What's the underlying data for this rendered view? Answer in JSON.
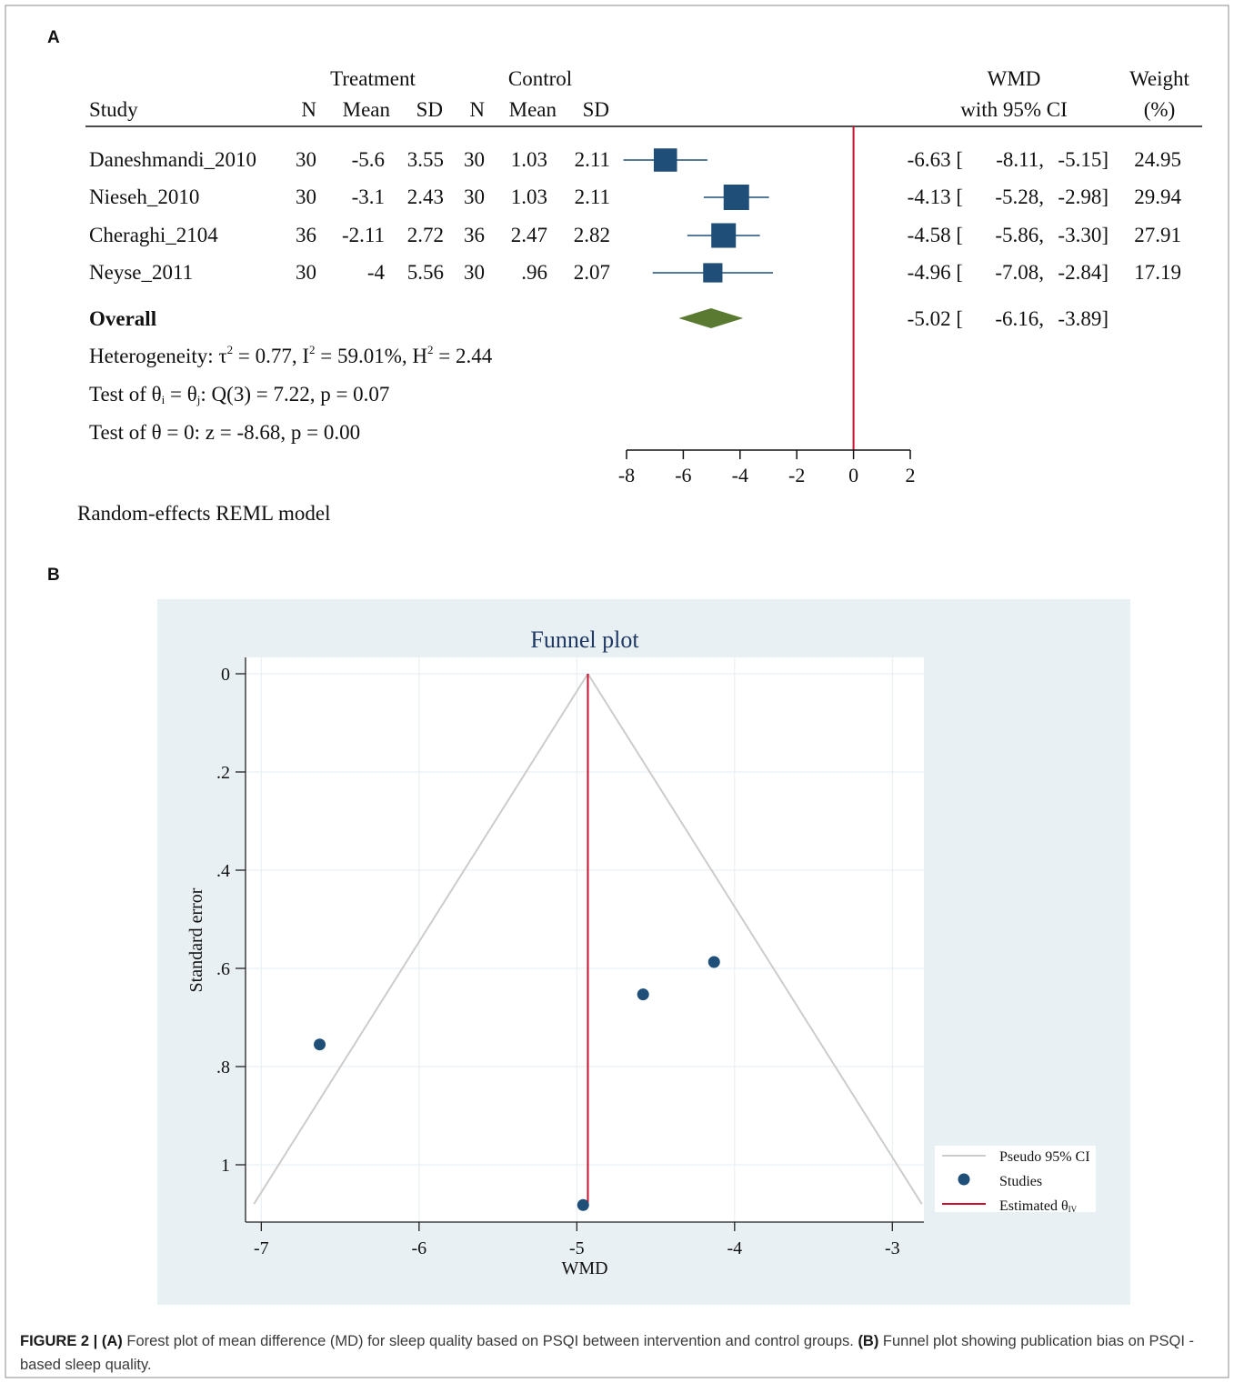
{
  "chart_data": [
    {
      "type": "forest",
      "panel_label": "A",
      "headers": {
        "study": "Study",
        "treatment_group": "Treatment",
        "control_group": "Control",
        "n": "N",
        "mean": "Mean",
        "sd": "SD",
        "wmd_line1": "WMD",
        "wmd_line2": "with 95% CI",
        "weight_line1": "Weight",
        "weight_line2": "(%)"
      },
      "studies": [
        {
          "name": "Daneshmandi_2010",
          "t_n": "30",
          "t_mean": "-5.6",
          "t_sd": "3.55",
          "c_n": "30",
          "c_mean": "1.03",
          "c_sd": "2.11",
          "est_text": "-6.63",
          "lo_text": "-8.11,",
          "hi_text": "-5.15]",
          "weight_text": "24.95",
          "est": -6.63,
          "lo": -8.11,
          "hi": -5.15,
          "weight": 24.95
        },
        {
          "name": "Nieseh_2010",
          "t_n": "30",
          "t_mean": "-3.1",
          "t_sd": "2.43",
          "c_n": "30",
          "c_mean": "1.03",
          "c_sd": "2.11",
          "est_text": "-4.13",
          "lo_text": "-5.28,",
          "hi_text": "-2.98]",
          "weight_text": "29.94",
          "est": -4.13,
          "lo": -5.28,
          "hi": -2.98,
          "weight": 29.94
        },
        {
          "name": "Cheraghi_2104",
          "t_n": "36",
          "t_mean": "-2.11",
          "t_sd": "2.72",
          "c_n": "36",
          "c_mean": "2.47",
          "c_sd": "2.82",
          "est_text": "-4.58",
          "lo_text": "-5.86,",
          "hi_text": "-3.30]",
          "weight_text": "27.91",
          "est": -4.58,
          "lo": -5.86,
          "hi": -3.3,
          "weight": 27.91
        },
        {
          "name": "Neyse_2011",
          "t_n": "30",
          "t_mean": "-4",
          "t_sd": "5.56",
          "c_n": "30",
          "c_mean": ".96",
          "c_sd": "2.07",
          "est_text": "-4.96",
          "lo_text": "-7.08,",
          "hi_text": "-2.84]",
          "weight_text": "17.19",
          "est": -4.96,
          "lo": -7.08,
          "hi": -2.84,
          "weight": 17.19
        }
      ],
      "overall": {
        "label": "Overall",
        "est_text": "-5.02",
        "lo_text": "-6.16,",
        "hi_text": "-3.89]",
        "est": -5.02,
        "lo": -6.16,
        "hi": -3.89
      },
      "heterogeneity": {
        "prefix": "Heterogeneity: τ",
        "tau_rest": " = 0.77, I",
        "i2_rest": " = 59.01%, H",
        "h2_rest": " = 2.44",
        "sup": "2"
      },
      "test_equal": {
        "prefix": "Test of θ",
        "sub_i": "i",
        "mid": " = θ",
        "sub_j": "j",
        "rest": ": Q(3) = 7.22, p = 0.07"
      },
      "test_zero": "Test of θ = 0: z = -8.68, p = 0.00",
      "model_note": "Random-effects REML model",
      "xaxis": {
        "ticks": [
          -8,
          -6,
          -4,
          -2,
          0,
          2
        ],
        "range": [
          -8,
          2
        ]
      },
      "null_line": 0,
      "colors": {
        "box": "#1f4e79",
        "diamond": "#5a7a32",
        "null_line": "#c8102e",
        "ci_line": "#1f4e79"
      }
    },
    {
      "type": "scatter",
      "subtype": "funnel",
      "panel_label": "B",
      "title": "Funnel plot",
      "xlabel": "WMD",
      "ylabel": "Standard error",
      "xlim": [
        -7.1,
        -2.8
      ],
      "ylim": [
        0,
        1.1
      ],
      "y_reversed": true,
      "x_ticks": [
        -7,
        -6,
        -5,
        -4,
        -3
      ],
      "y_ticks": [
        0,
        0.2,
        0.4,
        0.6,
        0.8,
        1
      ],
      "y_tick_labels": [
        "0",
        ".2",
        ".4",
        ".6",
        ".8",
        "1"
      ],
      "grid": true,
      "studies": [
        {
          "x": -6.63,
          "y": 0.755
        },
        {
          "x": -4.13,
          "y": 0.587
        },
        {
          "x": -4.58,
          "y": 0.653
        },
        {
          "x": -4.96,
          "y": 1.082
        }
      ],
      "estimate": -4.93,
      "pseudo_ci_bottom_y": 1.08,
      "legend": {
        "position": "bottom-right",
        "items": [
          {
            "label": "Pseudo 95% CI",
            "kind": "line",
            "color": "#cccccc"
          },
          {
            "label": "Studies",
            "kind": "marker",
            "color": "#1f4e79"
          },
          {
            "label": "Estimated θ",
            "sub": "IV",
            "kind": "line",
            "color": "#c8102e"
          }
        ]
      },
      "colors": {
        "background": "#e8f0f3",
        "plot_area": "#ffffff",
        "title": "#1f3864",
        "grid": "#e6eef2"
      }
    }
  ],
  "caption": {
    "figure": "FIGURE 2 |",
    "a_label": "(A)",
    "a_text": " Forest plot of mean difference (MD) for sleep quality based on PSQI between intervention and control groups. ",
    "b_label": "(B)",
    "b_text": " Funnel plot showing publication bias on PSQI -based sleep quality."
  }
}
